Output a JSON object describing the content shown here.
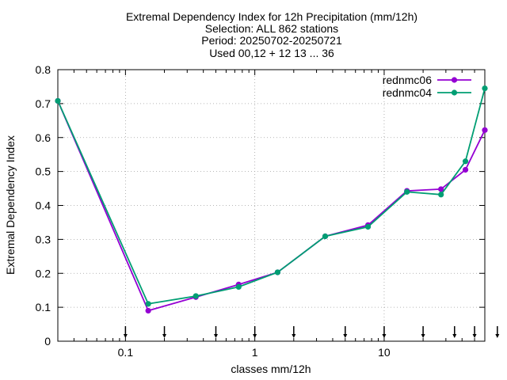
{
  "chart_data": {
    "type": "line",
    "title_lines": [
      "Extremal Dependency Index  for 12h Precipitation (mm/12h)",
      "Selection: ALL    862 stations",
      "Period: 20250702-20250721",
      "Used 00,12 + 12 13 ... 36"
    ],
    "xlabel": "classes mm/12h",
    "ylabel": "Extremal Dependency Index",
    "x_scale": "log",
    "xlim": [
      0.03,
      60
    ],
    "ylim": [
      0,
      0.8
    ],
    "x_ticks": [
      {
        "value": 0.1,
        "label": "0.1"
      },
      {
        "value": 1,
        "label": "1"
      },
      {
        "value": 10,
        "label": "10"
      }
    ],
    "y_ticks": [
      {
        "value": 0,
        "label": "0"
      },
      {
        "value": 0.1,
        "label": "0.1"
      },
      {
        "value": 0.2,
        "label": "0.2"
      },
      {
        "value": 0.3,
        "label": "0.3"
      },
      {
        "value": 0.4,
        "label": "0.4"
      },
      {
        "value": 0.5,
        "label": "0.5"
      },
      {
        "value": 0.6,
        "label": "0.6"
      },
      {
        "value": 0.7,
        "label": "0.7"
      },
      {
        "value": 0.8,
        "label": "0.8"
      }
    ],
    "threshold_markers": [
      0.1,
      0.2,
      0.5,
      1,
      2,
      5,
      10,
      20,
      35,
      50,
      75
    ],
    "grid": "dotted",
    "legend_position": "top-right",
    "x": [
      0.03,
      0.15,
      0.35,
      0.75,
      1.5,
      3.5,
      7.5,
      15,
      27.5,
      42.5,
      60
    ],
    "series": [
      {
        "name": "rednmc06",
        "color": "#9400d3",
        "values": [
          0.708,
          0.09,
          0.13,
          0.167,
          0.203,
          0.309,
          0.342,
          0.443,
          0.448,
          0.505,
          0.622
        ]
      },
      {
        "name": "rednmc04",
        "color": "#009e73",
        "values": [
          0.708,
          0.11,
          0.133,
          0.16,
          0.203,
          0.309,
          0.337,
          0.44,
          0.432,
          0.53,
          0.745
        ]
      }
    ]
  }
}
